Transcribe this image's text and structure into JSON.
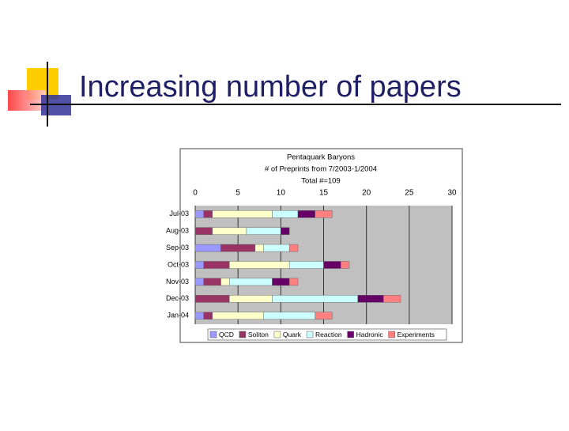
{
  "slide_title": "Increasing number of papers",
  "chart_data": {
    "type": "stacked-barh",
    "title": "Pentaquark Baryons",
    "subtitle": "# of Preprints from 7/2003-1/2004",
    "annotation": "Total #=109",
    "categories": [
      "Jul-03",
      "Aug-03",
      "Sep-03",
      "Oct-03",
      "Nov-03",
      "Dec-03",
      "Jan-04"
    ],
    "series": [
      {
        "name": "QCD",
        "color": "#9999ff",
        "values": [
          1,
          0,
          3,
          1,
          1,
          0,
          1
        ]
      },
      {
        "name": "Soliton",
        "color": "#993366",
        "values": [
          1,
          2,
          4,
          3,
          2,
          4,
          1
        ]
      },
      {
        "name": "Quark",
        "color": "#ffffcc",
        "values": [
          7,
          4,
          1,
          7,
          1,
          5,
          6
        ]
      },
      {
        "name": "Reaction",
        "color": "#ccffff",
        "values": [
          3,
          4,
          3,
          4,
          5,
          10,
          6
        ]
      },
      {
        "name": "Hadronic",
        "color": "#660066",
        "values": [
          2,
          1,
          0,
          2,
          2,
          3,
          0
        ]
      },
      {
        "name": "Experiments",
        "color": "#ff8080",
        "values": [
          2,
          0,
          1,
          1,
          1,
          2,
          2
        ]
      }
    ],
    "xlim": [
      0,
      30
    ],
    "xticks": [
      0,
      5,
      10,
      15,
      20,
      25,
      30
    ],
    "grid": true,
    "legend": "bottom"
  }
}
